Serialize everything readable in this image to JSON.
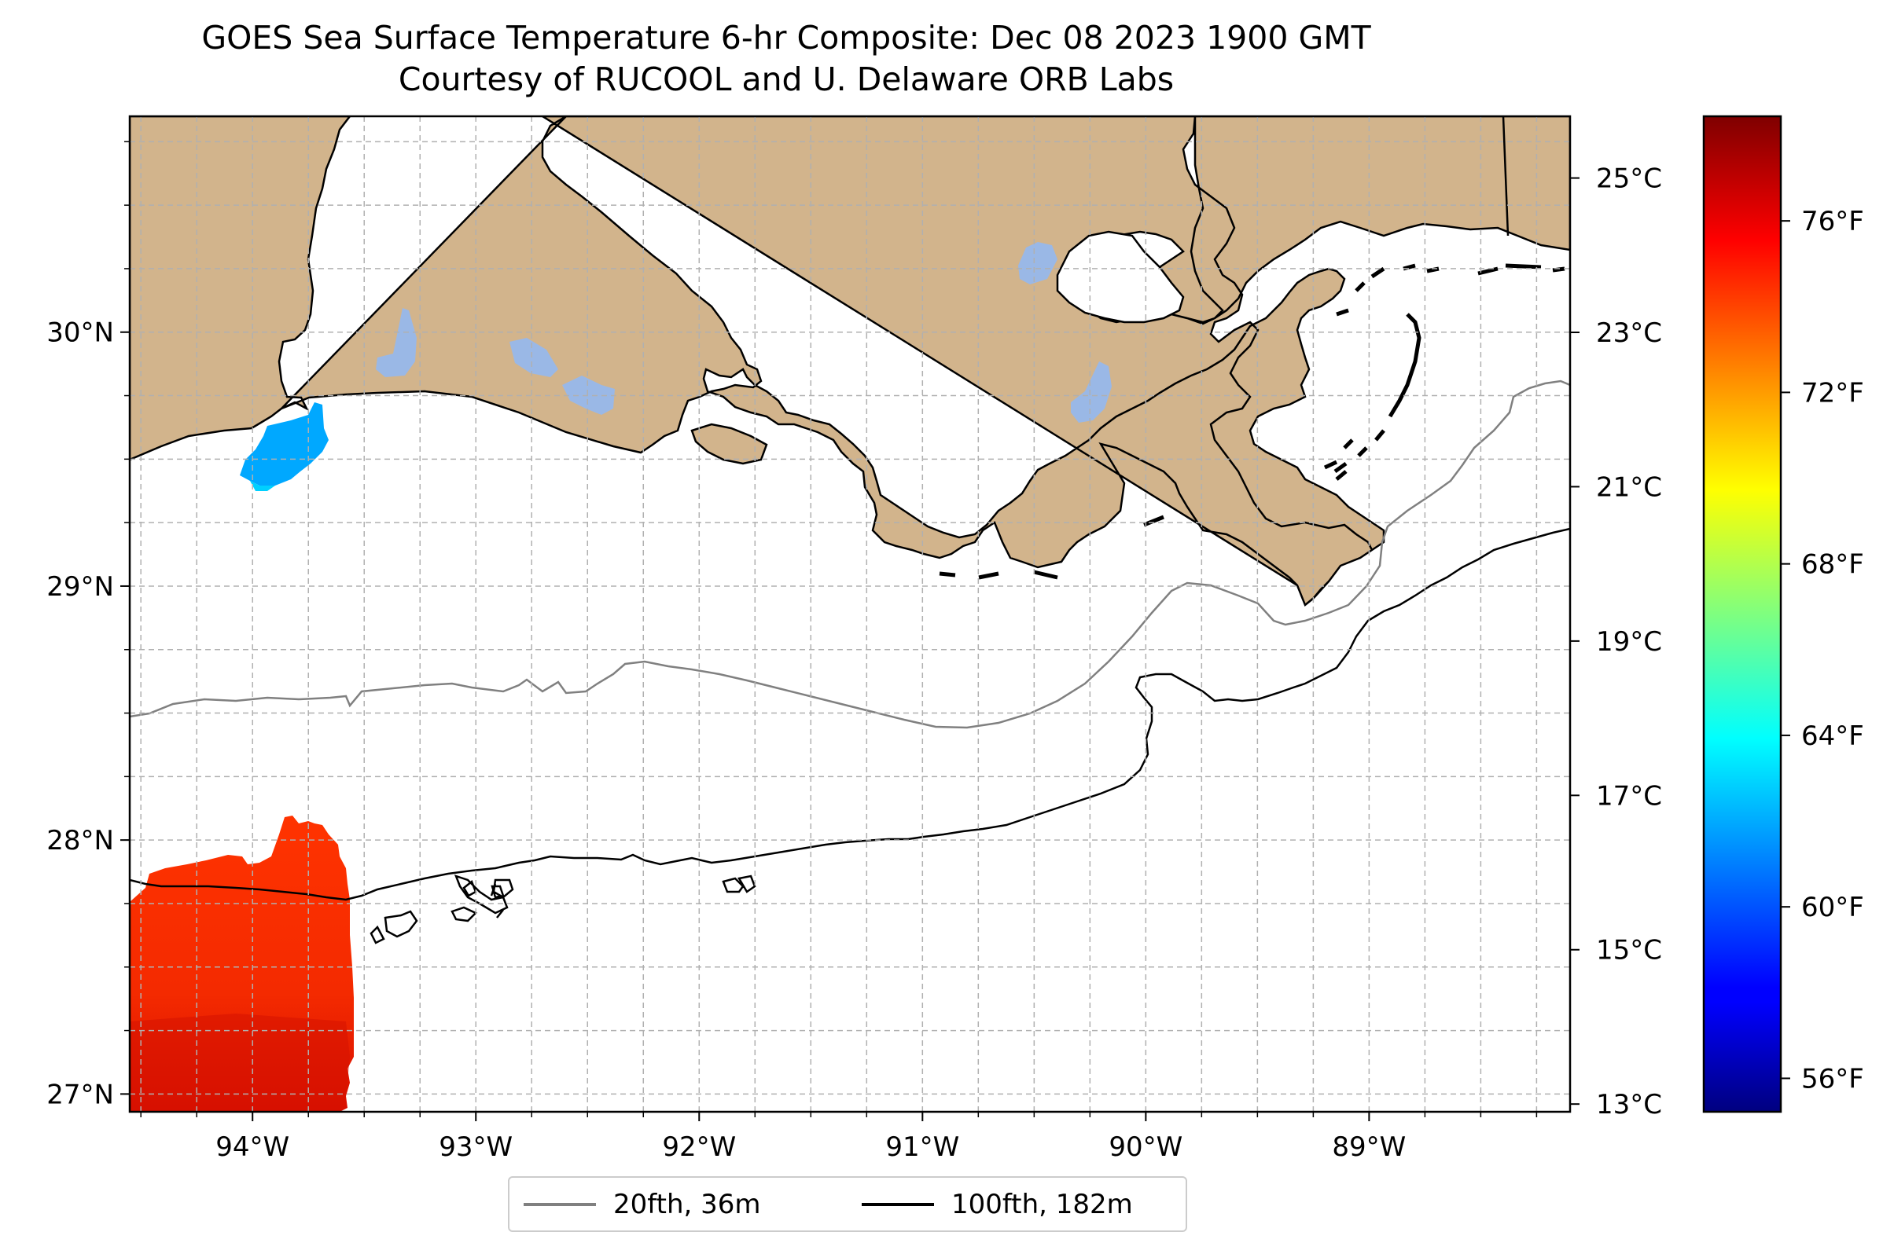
{
  "title": {
    "line1": "GOES Sea Surface Temperature 6-hr Composite: Dec 08 2023 1900 GMT",
    "line2": "Courtesy of RUCOOL and U. Delaware ORB Labs"
  },
  "map": {
    "lon_range": [
      -94.55,
      -88.1
    ],
    "lat_range": [
      26.93,
      30.85
    ],
    "lon_ticks": [
      {
        "value": -94,
        "label": "94°W"
      },
      {
        "value": -93,
        "label": "93°W"
      },
      {
        "value": -92,
        "label": "92°W"
      },
      {
        "value": -91,
        "label": "91°W"
      },
      {
        "value": -90,
        "label": "90°W"
      },
      {
        "value": -89,
        "label": "89°W"
      }
    ],
    "lat_ticks": [
      {
        "value": 30,
        "label": "30°N"
      },
      {
        "value": 29,
        "label": "29°N"
      },
      {
        "value": 28,
        "label": "28°N"
      },
      {
        "value": 27,
        "label": "27°N"
      }
    ],
    "grid": true,
    "land_color": "#d2b48c",
    "lake_color": "#9ab8e6",
    "ocean_color": "#ffffff"
  },
  "colorbar": {
    "celsius_ticks": [
      {
        "value": 25,
        "label": "25°C"
      },
      {
        "value": 23,
        "label": "23°C"
      },
      {
        "value": 21,
        "label": "21°C"
      },
      {
        "value": 19,
        "label": "19°C"
      },
      {
        "value": 17,
        "label": "17°C"
      },
      {
        "value": 15,
        "label": "15°C"
      },
      {
        "value": 13,
        "label": "13°C"
      }
    ],
    "fahrenheit_ticks": [
      {
        "value": 76,
        "label": "76°F"
      },
      {
        "value": 72,
        "label": "72°F"
      },
      {
        "value": 68,
        "label": "68°F"
      },
      {
        "value": 64,
        "label": "64°F"
      },
      {
        "value": 60,
        "label": "60°F"
      },
      {
        "value": 56,
        "label": "56°F"
      }
    ],
    "range_celsius": [
      12.9,
      25.8
    ],
    "colormap": "jet"
  },
  "legend": {
    "items": [
      {
        "label": "20fth, 36m",
        "color": "#808080"
      },
      {
        "label": "100fth, 182m",
        "color": "#000000"
      }
    ],
    "placement": "below map"
  }
}
